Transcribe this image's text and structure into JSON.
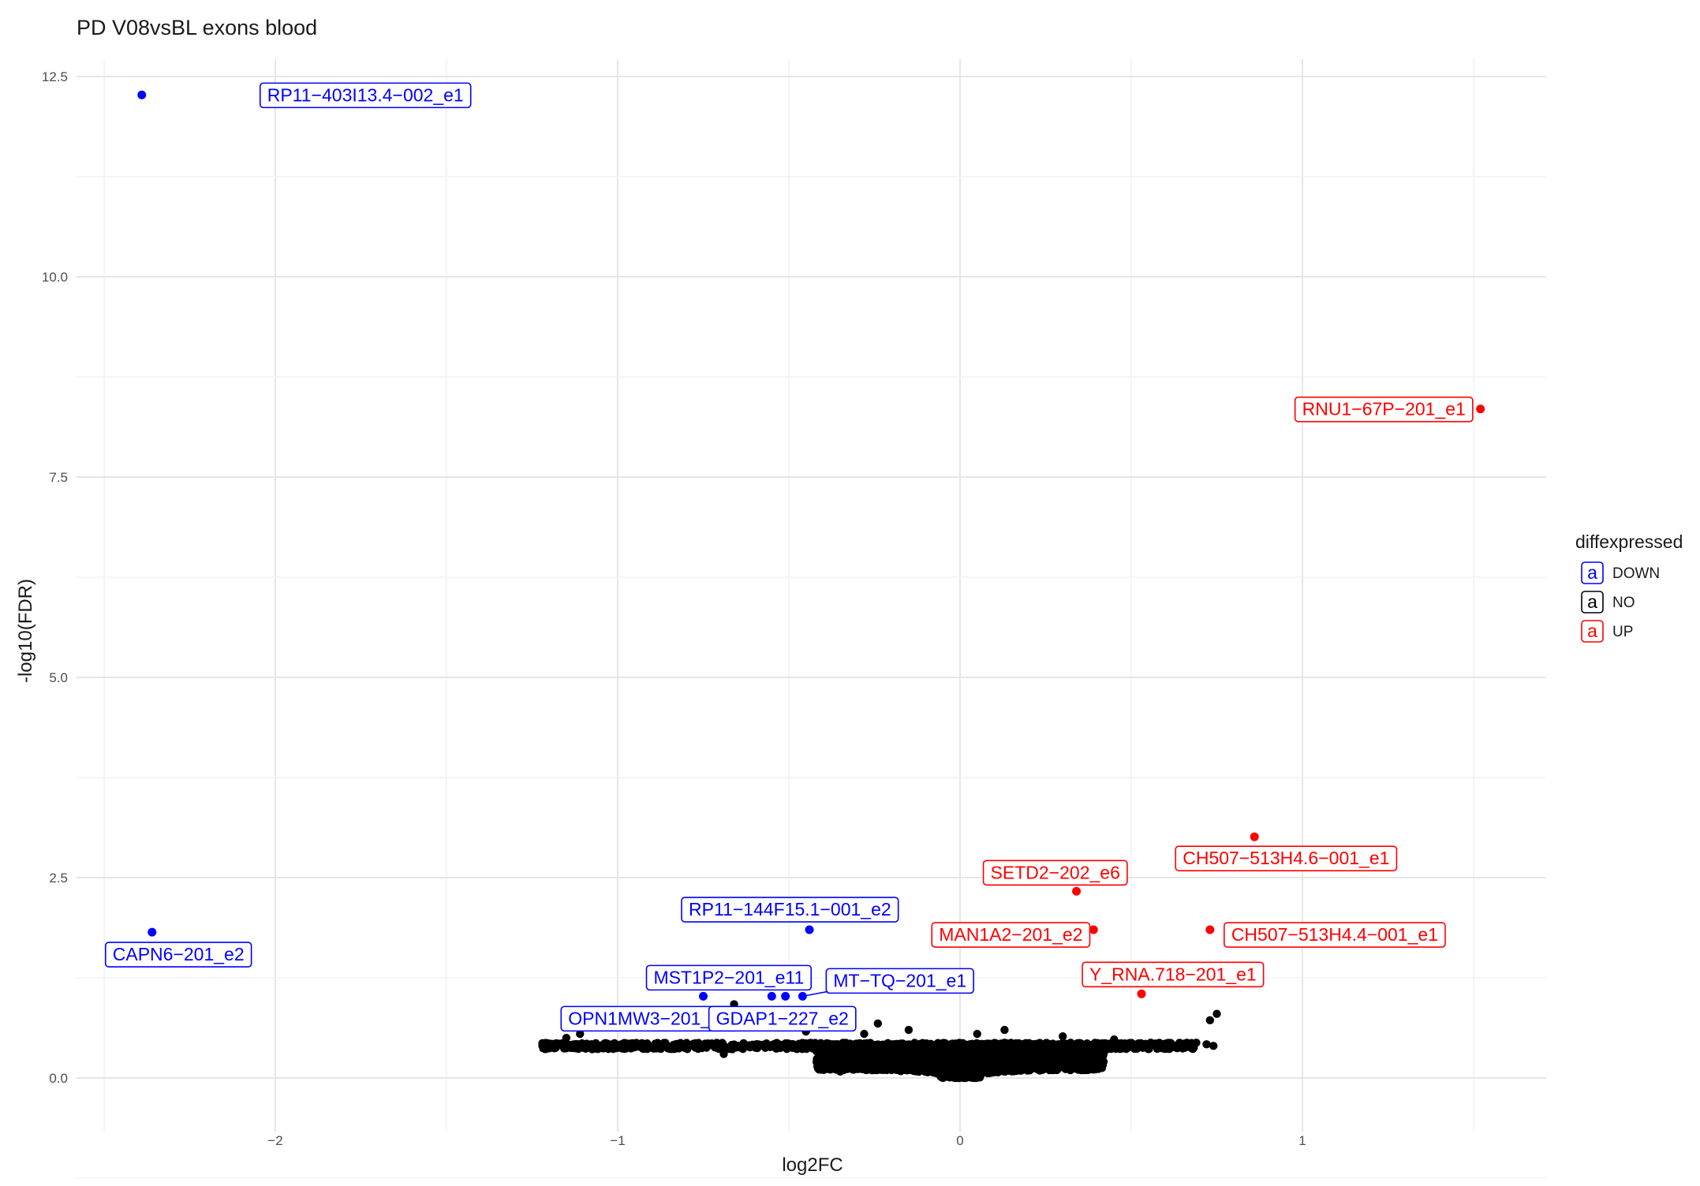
{
  "chart_data": {
    "type": "scatter",
    "title": "PD V08vsBL exons blood",
    "xlabel": "log2FC",
    "ylabel": "-log10(FDR)",
    "xlim": [
      -2.5,
      1.7
    ],
    "ylim": [
      -0.6,
      12.8
    ],
    "x_ticks": [
      -2,
      -1,
      0,
      1
    ],
    "x_tick_labels": [
      "−2",
      "−1",
      "0",
      "1"
    ],
    "y_ticks": [
      0,
      2.5,
      5,
      7.5,
      10,
      12.5
    ],
    "y_tick_labels": [
      "0.0",
      "2.5",
      "5.0",
      "7.5",
      "10.0",
      "12.5"
    ],
    "grid": true,
    "legend": {
      "title": "diffexpressed",
      "position": "right",
      "glyph": "a",
      "entries": [
        {
          "label": "DOWN",
          "color": "#0000ff"
        },
        {
          "label": "NO",
          "color": "#000000"
        },
        {
          "label": "UP",
          "color": "#ff0000"
        }
      ]
    },
    "colors": {
      "DOWN": "#0000ff",
      "NO": "#000000",
      "UP": "#ff0000"
    },
    "labeled_points": [
      {
        "label": "RP11−403I13.4−002_e1",
        "x": -2.39,
        "y": 12.27,
        "group": "DOWN"
      },
      {
        "label": "CAPN6−201_e2",
        "x": -2.36,
        "y": 1.82,
        "group": "DOWN"
      },
      {
        "label": "RP11−144F15.1−001_e2",
        "x": -0.44,
        "y": 1.85,
        "group": "DOWN"
      },
      {
        "label": "MST1P2−201_e11",
        "x": -0.75,
        "y": 1.02,
        "group": "DOWN"
      },
      {
        "label": "MT−TQ−201_e1",
        "x": -0.46,
        "y": 1.02,
        "group": "DOWN"
      },
      {
        "label": "OPN1MW3−201_e6",
        "x": -0.55,
        "y": 1.02,
        "group": "DOWN"
      },
      {
        "label": "GDAP1−227_e2",
        "x": -0.51,
        "y": 1.02,
        "group": "DOWN"
      },
      {
        "label": "RNU1−67P−201_e1",
        "x": 1.52,
        "y": 8.35,
        "group": "UP"
      },
      {
        "label": "CH507−513H4.6−001_e1",
        "x": 0.86,
        "y": 3.01,
        "group": "UP"
      },
      {
        "label": "SETD2−202_e6",
        "x": 0.34,
        "y": 2.33,
        "group": "UP"
      },
      {
        "label": "MAN1A2−201_e2",
        "x": 0.39,
        "y": 1.85,
        "group": "UP"
      },
      {
        "label": "CH507−513H4.4−001_e1",
        "x": 0.73,
        "y": 1.85,
        "group": "UP"
      },
      {
        "label": "Y_RNA.718−201_e1",
        "x": 0.53,
        "y": 1.05,
        "group": "UP"
      }
    ],
    "other_points": [
      {
        "x": -0.66,
        "y": 0.92
      },
      {
        "x": -0.61,
        "y": 0.84
      },
      {
        "x": -0.24,
        "y": 0.68
      },
      {
        "x": -0.35,
        "y": 0.72
      },
      {
        "x": -0.72,
        "y": 0.7
      },
      {
        "x": -1.11,
        "y": 0.55
      },
      {
        "x": -1.15,
        "y": 0.5
      },
      {
        "x": 0.13,
        "y": 0.6
      },
      {
        "x": 0.73,
        "y": 0.72
      },
      {
        "x": 0.75,
        "y": 0.8
      },
      {
        "x": 0.74,
        "y": 0.4
      },
      {
        "x": 0.72,
        "y": 0.42
      },
      {
        "x": 0.65,
        "y": 0.4
      },
      {
        "x": 0.6,
        "y": 0.42
      },
      {
        "x": 0.57,
        "y": 0.43
      },
      {
        "x": 0.36,
        "y": 0.18
      },
      {
        "x": 0.21,
        "y": 0.15
      },
      {
        "x": -0.35,
        "y": 0.08
      },
      {
        "x": -0.69,
        "y": 0.3
      },
      {
        "x": -0.34,
        "y": 0.2
      },
      {
        "x": -0.28,
        "y": 0.55
      },
      {
        "x": 0.45,
        "y": 0.48
      },
      {
        "x": 0.3,
        "y": 0.52
      },
      {
        "x": -0.15,
        "y": 0.6
      },
      {
        "x": 0.05,
        "y": 0.55
      },
      {
        "x": -0.45,
        "y": 0.58
      },
      {
        "x": 0.25,
        "y": 0.2
      }
    ],
    "bulk_band": {
      "x_range": [
        -1.22,
        0.69
      ],
      "y_baseline": 0.4,
      "valley_x": 0,
      "valley_y": 0
    }
  }
}
